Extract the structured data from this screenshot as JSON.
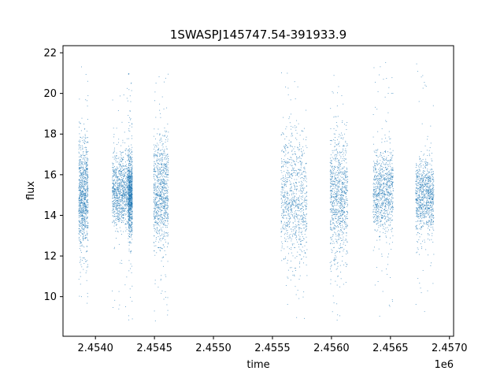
{
  "chart_data": {
    "type": "scatter",
    "title": "1SWASPJ145747.54-391933.9",
    "xlabel": "time",
    "ylabel": "flux",
    "x_offset_label": "1e6",
    "xlim": [
      2453725,
      2457035
    ],
    "ylim": [
      8.05,
      22.35
    ],
    "grid": false,
    "point_color": "#1f77b4",
    "x_ticks": [
      {
        "value": 2454000,
        "label": "2.4540"
      },
      {
        "value": 2454500,
        "label": "2.4545"
      },
      {
        "value": 2455000,
        "label": "2.4550"
      },
      {
        "value": 2455500,
        "label": "2.4555"
      },
      {
        "value": 2456000,
        "label": "2.4560"
      },
      {
        "value": 2456500,
        "label": "2.4565"
      },
      {
        "value": 2457000,
        "label": "2.4570"
      }
    ],
    "y_ticks": [
      {
        "value": 10,
        "label": "10"
      },
      {
        "value": 12,
        "label": "12"
      },
      {
        "value": 14,
        "label": "14"
      },
      {
        "value": 16,
        "label": "16"
      },
      {
        "value": 18,
        "label": "18"
      },
      {
        "value": 20,
        "label": "20"
      },
      {
        "value": 22,
        "label": "22"
      }
    ],
    "observing_seasons": [
      {
        "x_start": 2453855,
        "x_end": 2453935,
        "flux_center": 15.0,
        "flux_spread": 1.3,
        "flux_min": 9.2,
        "flux_max": 21.7
      },
      {
        "x_start": 2454140,
        "x_end": 2454275,
        "flux_center": 15.2,
        "flux_spread": 0.9,
        "flux_min": 9.2,
        "flux_max": 21.8
      },
      {
        "x_start": 2454275,
        "x_end": 2454310,
        "flux_center": 15.0,
        "flux_spread": 1.0,
        "flux_min": 8.8,
        "flux_max": 21.0
      },
      {
        "x_start": 2454490,
        "x_end": 2454615,
        "flux_center": 15.2,
        "flux_spread": 1.4,
        "flux_min": 8.7,
        "flux_max": 21.7
      },
      {
        "x_start": 2455570,
        "x_end": 2455790,
        "flux_center": 14.8,
        "flux_spread": 1.6,
        "flux_min": 8.8,
        "flux_max": 21.1
      },
      {
        "x_start": 2455985,
        "x_end": 2456135,
        "flux_center": 15.0,
        "flux_spread": 1.6,
        "flux_min": 8.7,
        "flux_max": 21.5
      },
      {
        "x_start": 2456350,
        "x_end": 2456520,
        "flux_center": 15.2,
        "flux_spread": 1.1,
        "flux_min": 8.7,
        "flux_max": 21.7
      },
      {
        "x_start": 2456710,
        "x_end": 2456865,
        "flux_center": 15.0,
        "flux_spread": 0.9,
        "flux_min": 9.0,
        "flux_max": 21.6
      }
    ]
  }
}
